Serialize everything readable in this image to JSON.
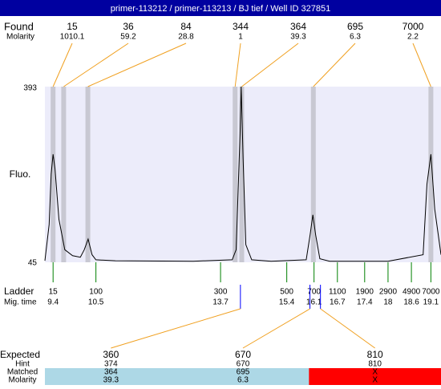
{
  "chart_data": {
    "type": "electropherogram",
    "title": "primer-113212 / primer-113213 / BJ tief / Well ID 327851",
    "found": {
      "label": "Found",
      "molarity_label": "Molarity",
      "sizes": [
        15,
        36,
        84,
        344,
        364,
        695,
        7000
      ],
      "molarities": [
        1010.1,
        59.2,
        28.8,
        1,
        39.3,
        6.3,
        2.2
      ]
    },
    "y_label": "Fluo.",
    "ylim": [
      45,
      393
    ],
    "yticks": [
      45,
      393
    ],
    "xlim": [
      9.19,
      19.36
    ],
    "trace": {
      "color": "#000000",
      "x": [
        9.19,
        9.3,
        9.35,
        9.4,
        9.45,
        9.55,
        9.7,
        9.9,
        10.1,
        10.2,
        10.3,
        10.4,
        10.5,
        11,
        13,
        14.0,
        14.1,
        14.2,
        14.23,
        14.28,
        14.35,
        14.5,
        15,
        15.9,
        16.0,
        16.07,
        16.14,
        16.25,
        16.5,
        18,
        18.9,
        19.0,
        19.1,
        19.2,
        19.36
      ],
      "values": [
        48,
        120,
        220,
        259,
        230,
        130,
        70,
        58,
        55,
        70,
        91,
        60,
        50,
        48,
        47,
        50,
        70,
        300,
        393,
        250,
        80,
        50,
        47,
        50,
        100,
        139,
        100,
        52,
        47,
        47,
        60,
        200,
        259,
        150,
        60
      ]
    },
    "ladder": {
      "label": "Ladder",
      "time_label": "Mig. time",
      "sizes": [
        15,
        100,
        300,
        500,
        700,
        1100,
        1900,
        2900,
        4900,
        7000
      ],
      "times": [
        9.4,
        10.5,
        13.7,
        15.4,
        16.1,
        16.7,
        17.4,
        18,
        18.6,
        19.1
      ]
    },
    "expected": {
      "label": "Expected",
      "hint_label": "Hint",
      "matched_label": "Matched",
      "molarity_label": "Molarity",
      "sizes": [
        360,
        670,
        810
      ],
      "hints": [
        374,
        670,
        810
      ],
      "matched": [
        364,
        695,
        "X"
      ],
      "molarity": [
        39.3,
        6.3,
        "X"
      ],
      "colors": [
        "#add8e6",
        "#add8e6",
        "#ff0000"
      ]
    }
  }
}
